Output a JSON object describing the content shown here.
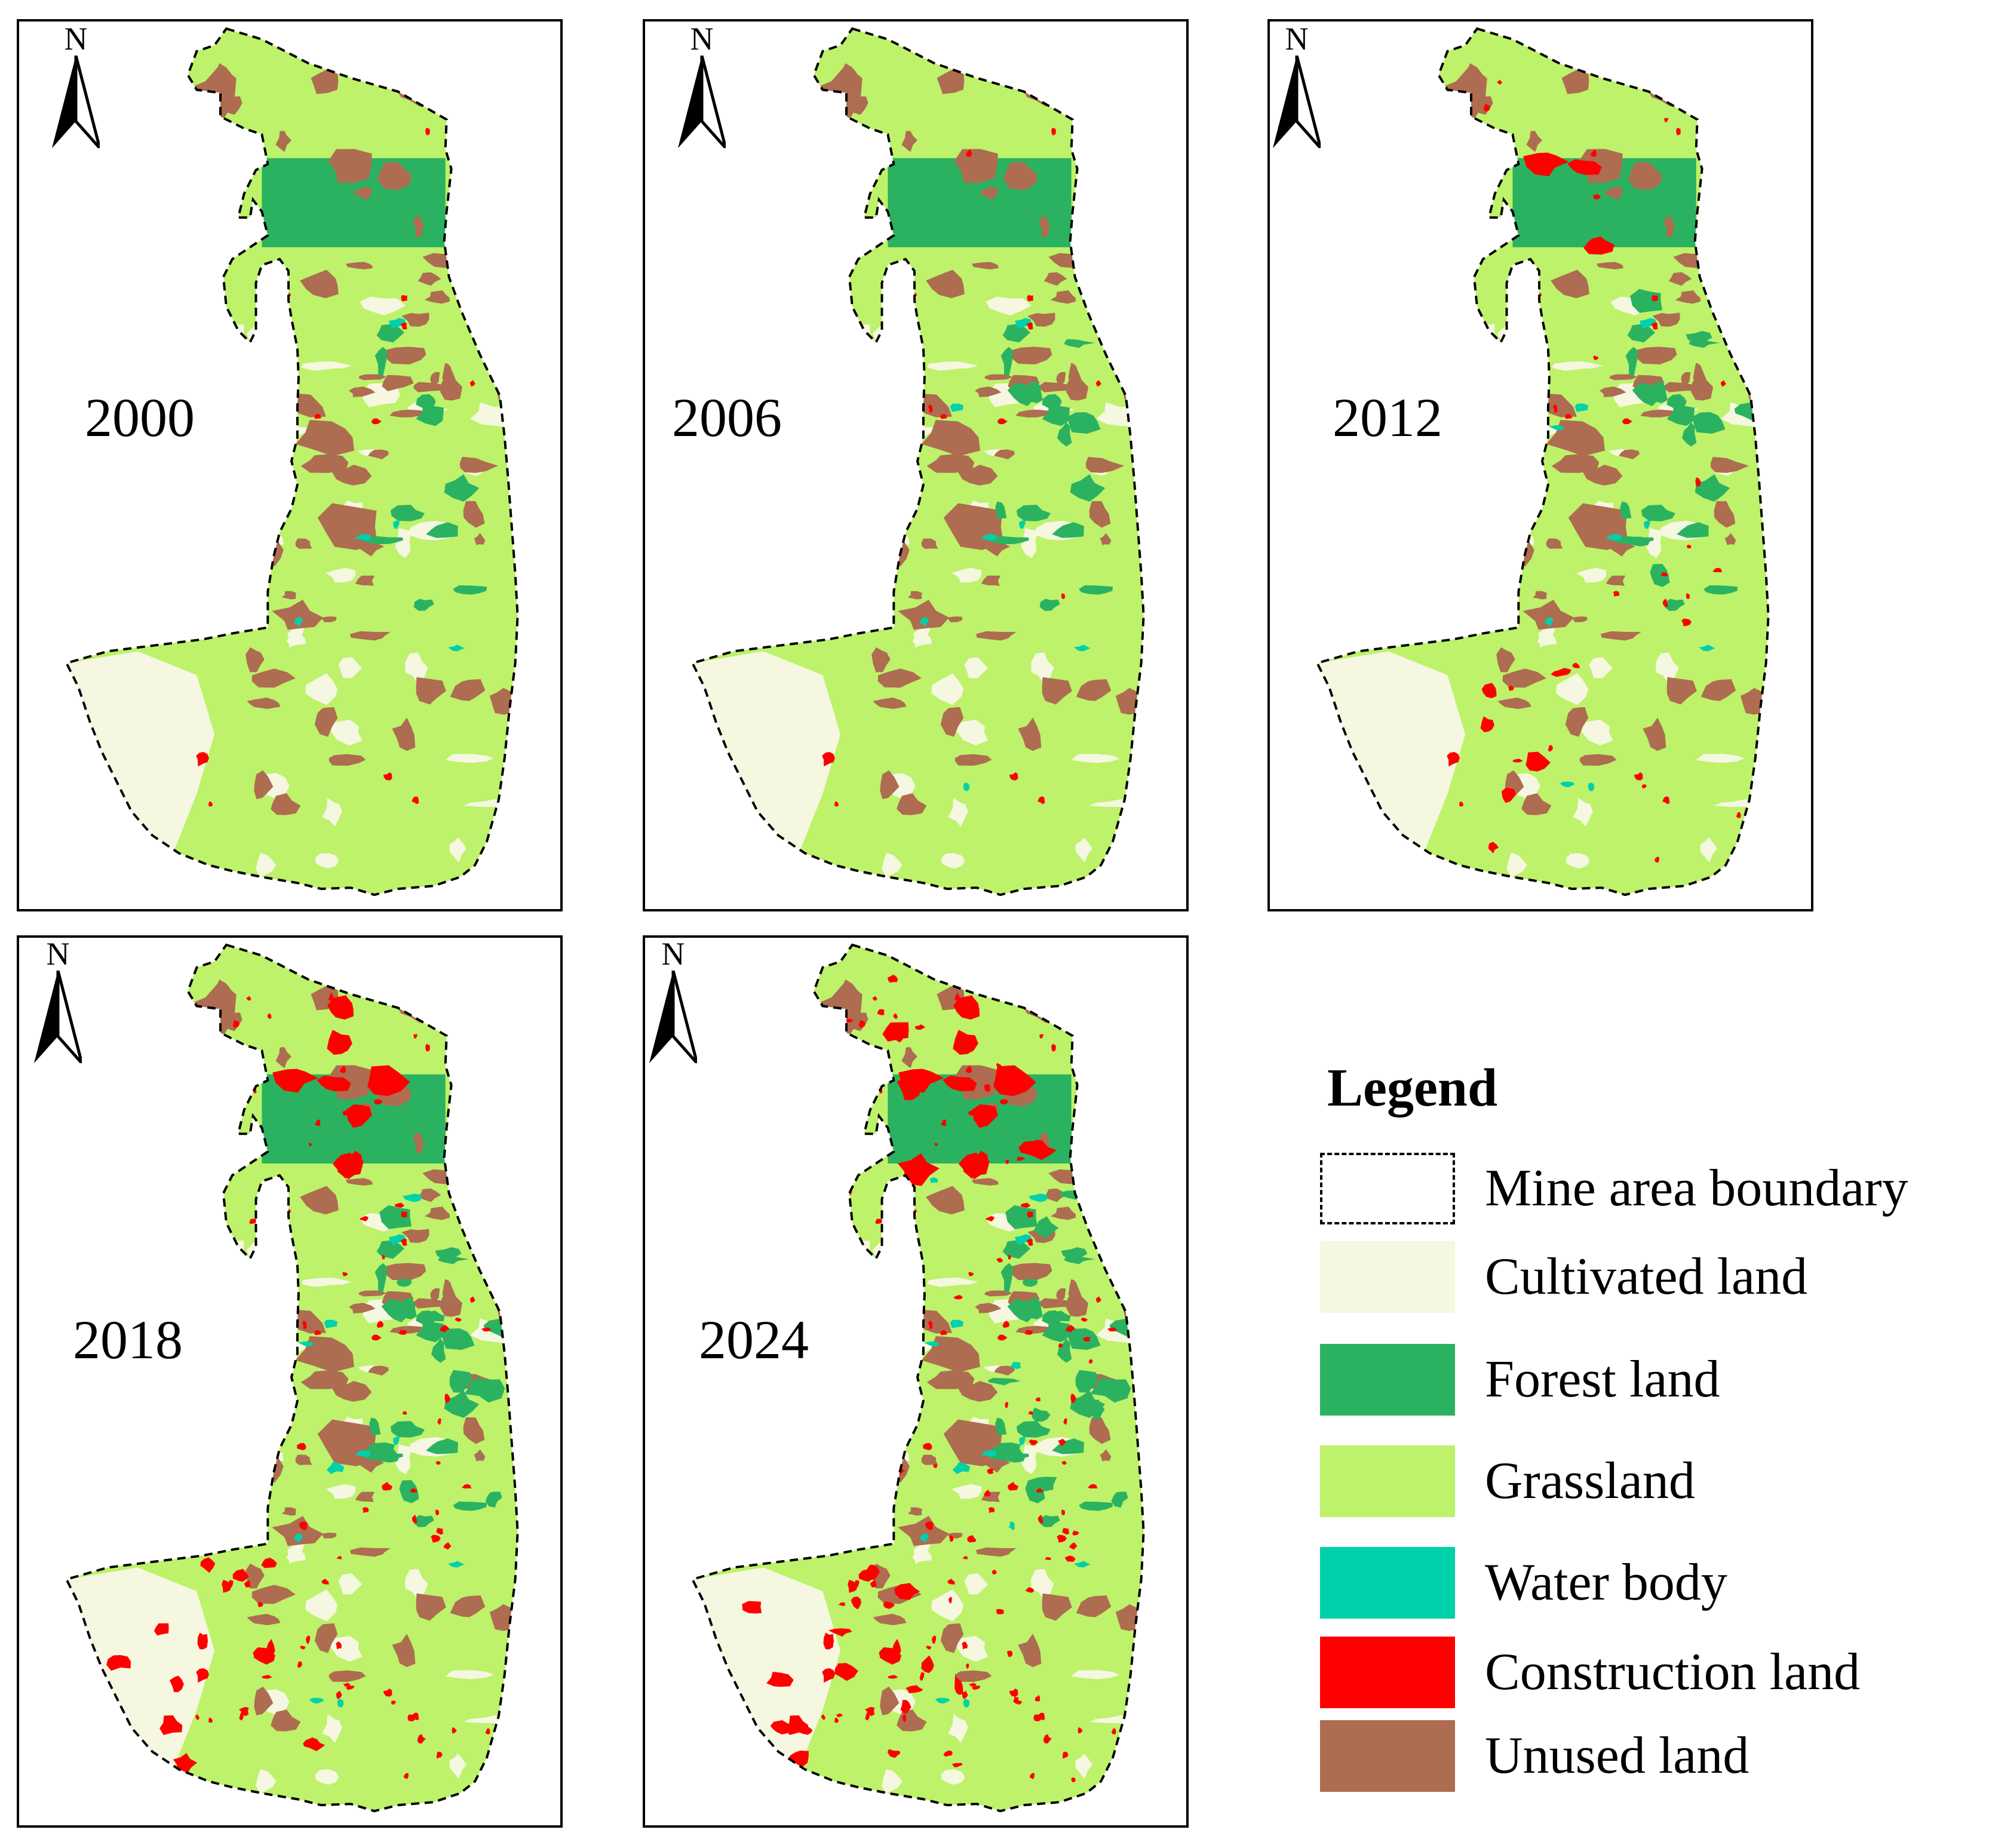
{
  "panels": [
    {
      "id": "p2000",
      "year": "2000",
      "north": "N",
      "stage": 0
    },
    {
      "id": "p2006",
      "year": "2006",
      "north": "N",
      "stage": 1
    },
    {
      "id": "p2012",
      "year": "2012",
      "north": "N",
      "stage": 2
    },
    {
      "id": "p2018",
      "year": "2018",
      "north": "N",
      "stage": 3
    },
    {
      "id": "p2024",
      "year": "2024",
      "north": "N",
      "stage": 4
    }
  ],
  "legend": {
    "title": "Legend",
    "items": [
      {
        "label": "Mine area boundary",
        "type": "boundary",
        "color": "#000000"
      },
      {
        "label": "Cultivated land",
        "type": "fill",
        "color": "#F5F7E1"
      },
      {
        "label": "Forest land",
        "type": "fill",
        "color": "#2BB261"
      },
      {
        "label": "Grassland",
        "type": "fill",
        "color": "#BDF26A"
      },
      {
        "label": "Water body",
        "type": "fill",
        "color": "#00D1AA"
      },
      {
        "label": "Construction land",
        "type": "fill",
        "color": "#FF0000"
      },
      {
        "label": "Unused land",
        "type": "fill",
        "color": "#AE6C51"
      }
    ]
  },
  "icons": {
    "north_arrow": "north-arrow-icon"
  }
}
